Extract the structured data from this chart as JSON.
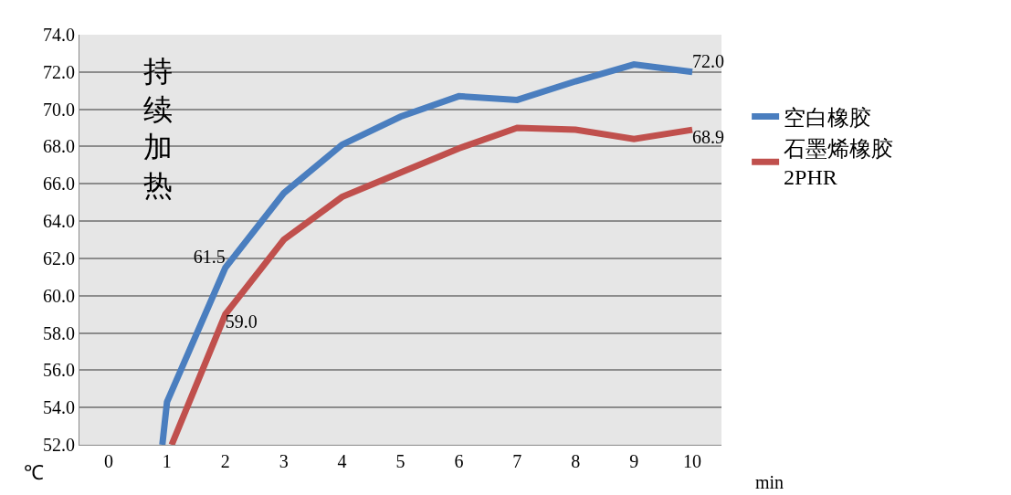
{
  "chart_data": {
    "type": "line",
    "xlabel": "min",
    "ylabel": "℃",
    "annotations": [
      "持续加热"
    ],
    "xlim": [
      -0.5,
      10.5
    ],
    "xticks": [
      0,
      1,
      2,
      3,
      4,
      5,
      6,
      7,
      8,
      9,
      10
    ],
    "ylim": [
      52,
      74
    ],
    "yticks": [
      "52.0",
      "54.0",
      "56.0",
      "58.0",
      "60.0",
      "62.0",
      "64.0",
      "66.0",
      "68.0",
      "70.0",
      "72.0",
      "74.0"
    ],
    "grid": "y",
    "legend": "right",
    "marker": "none",
    "line_style": "solid",
    "series": [
      {
        "name": "空白橡胶",
        "color": "#4a7ebf",
        "x": [
          0.92,
          1,
          2,
          3,
          4,
          5,
          6,
          7,
          8,
          9,
          10
        ],
        "values": [
          52,
          54.3,
          61.5,
          65.5,
          68.1,
          69.6,
          70.7,
          70.5,
          71.5,
          72.4,
          72.0
        ],
        "value_labels": [
          null,
          null,
          "61.5",
          null,
          null,
          null,
          null,
          null,
          null,
          null,
          "72.0"
        ]
      },
      {
        "name": "石墨烯橡胶\n2PHR",
        "color": "#c0504d",
        "x": [
          1.08,
          2,
          3,
          4,
          5,
          6,
          7,
          8,
          9,
          10
        ],
        "values": [
          52,
          59.0,
          63.0,
          65.3,
          66.6,
          67.9,
          69.0,
          68.9,
          68.4,
          68.9
        ],
        "value_labels": [
          null,
          "59.0",
          null,
          null,
          null,
          null,
          null,
          null,
          null,
          "68.9"
        ]
      }
    ]
  }
}
